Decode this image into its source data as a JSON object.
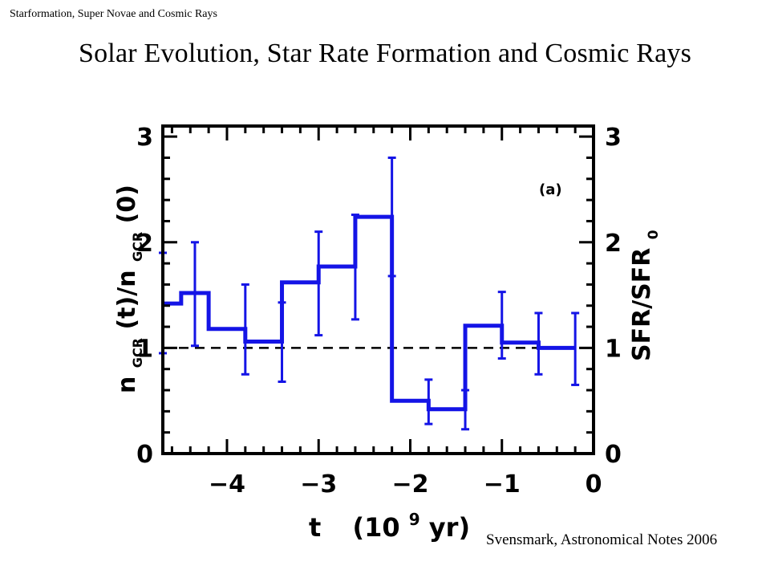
{
  "header": {
    "tag": "Starformation, Super Novae and Cosmic Rays",
    "title": "Solar Evolution, Star Rate Formation and Cosmic Rays"
  },
  "citation": "Svensmark, Astronomical Notes 2006",
  "chart_data": {
    "type": "step",
    "annotation": "(a)",
    "xlabel_main": "t",
    "xlabel_unit_open": "(10",
    "xlabel_unit_exp": "9",
    "xlabel_unit_close": " yr)",
    "ylabel_left": {
      "n": "n",
      "sub1": "GCR",
      "mid": "(t)/n",
      "sub2": "GCR",
      "end": "(0)"
    },
    "ylabel_right": {
      "main": "SFR/SFR",
      "sub": "0"
    },
    "xlim": [
      -4.7,
      0
    ],
    "ylim": [
      0,
      3.1
    ],
    "x_ticks": [
      -4,
      -3,
      -2,
      -1,
      0
    ],
    "x_tick_labels": [
      "−4",
      "−3",
      "−2",
      "−1",
      "0"
    ],
    "y_ticks": [
      0,
      1,
      2,
      3
    ],
    "y_tick_labels": [
      "0",
      "1",
      "2",
      "3"
    ],
    "reference_line": 1,
    "line_color": "#1414e6",
    "bins": [
      {
        "x0": -4.7,
        "x1": -4.5,
        "y": 1.42,
        "err_x": -4.7,
        "err_lo": 0.95,
        "err_hi": 1.9
      },
      {
        "x0": -4.5,
        "x1": -4.2,
        "y": 1.52,
        "err_x": -4.35,
        "err_lo": 1.02,
        "err_hi": 2.0
      },
      {
        "x0": -4.2,
        "x1": -3.8,
        "y": 1.18,
        "err_x": -3.8,
        "err_lo": 0.75,
        "err_hi": 1.6
      },
      {
        "x0": -3.8,
        "x1": -3.4,
        "y": 1.06,
        "err_x": -3.4,
        "err_lo": 0.68,
        "err_hi": 1.43
      },
      {
        "x0": -3.4,
        "x1": -3.0,
        "y": 1.62,
        "err_x": -3.0,
        "err_lo": 1.12,
        "err_hi": 2.1
      },
      {
        "x0": -3.0,
        "x1": -2.6,
        "y": 1.77,
        "err_x": -2.6,
        "err_lo": 1.27,
        "err_hi": 2.26
      },
      {
        "x0": -2.6,
        "x1": -2.2,
        "y": 2.24,
        "err_x": -2.2,
        "err_lo": 1.68,
        "err_hi": 2.8
      },
      {
        "x0": -2.2,
        "x1": -1.8,
        "y": 0.5,
        "err_x": -1.8,
        "err_lo": 0.28,
        "err_hi": 0.7
      },
      {
        "x0": -1.8,
        "x1": -1.4,
        "y": 0.42,
        "err_x": -1.4,
        "err_lo": 0.23,
        "err_hi": 0.6
      },
      {
        "x0": -1.4,
        "x1": -1.0,
        "y": 1.21,
        "err_x": -1.0,
        "err_lo": 0.9,
        "err_hi": 1.53
      },
      {
        "x0": -1.0,
        "x1": -0.6,
        "y": 1.05,
        "err_x": -0.6,
        "err_lo": 0.75,
        "err_hi": 1.33
      },
      {
        "x0": -0.6,
        "x1": -0.2,
        "y": 1.0,
        "err_x": -0.2,
        "err_lo": 0.65,
        "err_hi": 1.33
      }
    ]
  }
}
